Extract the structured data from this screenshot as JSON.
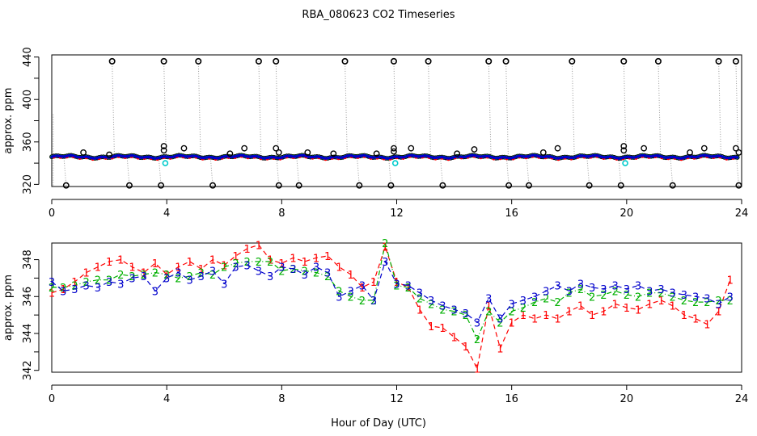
{
  "figure": {
    "title": "RBA_080623  CO2 Timeseries",
    "xlabel": "Hour of Day (UTC)"
  },
  "colors": {
    "axis": "#000000",
    "gray_drop": "#999999",
    "raw": "#000000",
    "series1": "#ff0000",
    "series2": "#00b000",
    "series3": "#0000cc",
    "cyan": "#00cccc"
  },
  "chart_data": [
    {
      "type": "scatter",
      "title": "RBA_080623  CO2 Timeseries",
      "xlabel": "",
      "ylabel": "approx. ppm",
      "xlim": [
        0,
        24
      ],
      "ylim": [
        318,
        442
      ],
      "xticks": [
        0,
        4,
        8,
        12,
        16,
        20,
        24
      ],
      "yticks": [
        320,
        360,
        400,
        440
      ],
      "baseline_ppm": 346,
      "outliers_high": [
        {
          "x": 2.1,
          "y": 436
        },
        {
          "x": 3.9,
          "y": 436
        },
        {
          "x": 5.1,
          "y": 436
        },
        {
          "x": 7.2,
          "y": 436
        },
        {
          "x": 7.8,
          "y": 436
        },
        {
          "x": 10.2,
          "y": 436
        },
        {
          "x": 11.9,
          "y": 436
        },
        {
          "x": 13.1,
          "y": 436
        },
        {
          "x": 15.2,
          "y": 436
        },
        {
          "x": 15.8,
          "y": 436
        },
        {
          "x": 18.1,
          "y": 436
        },
        {
          "x": 19.9,
          "y": 436
        },
        {
          "x": 21.1,
          "y": 436
        },
        {
          "x": 23.2,
          "y": 436
        },
        {
          "x": 23.8,
          "y": 436
        }
      ],
      "outliers_low": [
        {
          "x": 0.5,
          "y": 319
        },
        {
          "x": 2.7,
          "y": 319
        },
        {
          "x": 3.8,
          "y": 319
        },
        {
          "x": 5.6,
          "y": 319
        },
        {
          "x": 7.9,
          "y": 319
        },
        {
          "x": 8.6,
          "y": 319
        },
        {
          "x": 10.7,
          "y": 319
        },
        {
          "x": 11.8,
          "y": 319
        },
        {
          "x": 13.6,
          "y": 319
        },
        {
          "x": 15.9,
          "y": 319
        },
        {
          "x": 16.6,
          "y": 319
        },
        {
          "x": 18.7,
          "y": 319
        },
        {
          "x": 19.8,
          "y": 319
        },
        {
          "x": 21.6,
          "y": 319
        },
        {
          "x": 23.9,
          "y": 319
        }
      ],
      "mid_points": [
        {
          "x": 1.1,
          "y": 350
        },
        {
          "x": 2.0,
          "y": 348
        },
        {
          "x": 3.9,
          "y": 352
        },
        {
          "x": 3.9,
          "y": 356
        },
        {
          "x": 4.6,
          "y": 354
        },
        {
          "x": 6.2,
          "y": 349
        },
        {
          "x": 6.7,
          "y": 354
        },
        {
          "x": 7.8,
          "y": 354
        },
        {
          "x": 7.9,
          "y": 350
        },
        {
          "x": 8.9,
          "y": 350
        },
        {
          "x": 9.8,
          "y": 349
        },
        {
          "x": 11.3,
          "y": 349
        },
        {
          "x": 11.9,
          "y": 354
        },
        {
          "x": 11.9,
          "y": 351
        },
        {
          "x": 12.5,
          "y": 354
        },
        {
          "x": 14.1,
          "y": 349
        },
        {
          "x": 14.7,
          "y": 353
        },
        {
          "x": 17.1,
          "y": 350
        },
        {
          "x": 17.6,
          "y": 354
        },
        {
          "x": 19.9,
          "y": 352
        },
        {
          "x": 19.9,
          "y": 356
        },
        {
          "x": 20.6,
          "y": 354
        },
        {
          "x": 22.2,
          "y": 350
        },
        {
          "x": 22.7,
          "y": 354
        },
        {
          "x": 23.8,
          "y": 354
        },
        {
          "x": 23.9,
          "y": 350
        }
      ],
      "cyan_points": [
        {
          "x": 3.95,
          "y": 340
        },
        {
          "x": 11.95,
          "y": 340
        },
        {
          "x": 19.95,
          "y": 340
        }
      ]
    },
    {
      "type": "line",
      "title": "",
      "xlabel": "Hour of Day (UTC)",
      "ylabel": "approx. ppm",
      "xlim": [
        0,
        24
      ],
      "ylim": [
        341.9,
        348.9
      ],
      "xticks": [
        0,
        4,
        8,
        12,
        16,
        20,
        24
      ],
      "yticks": [
        342,
        344,
        346,
        348
      ],
      "series": [
        {
          "name": "1",
          "style": "dashed",
          "x": [
            0.0,
            0.4,
            0.8,
            1.2,
            1.6,
            2.0,
            2.4,
            2.8,
            3.2,
            3.6,
            4.0,
            4.4,
            4.8,
            5.2,
            5.6,
            6.0,
            6.4,
            6.8,
            7.2,
            7.6,
            8.0,
            8.4,
            8.8,
            9.2,
            9.6,
            10.0,
            10.4,
            10.8,
            11.2,
            11.6,
            12.0,
            12.4,
            12.8,
            13.2,
            13.6,
            14.0,
            14.4,
            14.8,
            15.2,
            15.6,
            16.0,
            16.4,
            16.8,
            17.2,
            17.6,
            18.0,
            18.4,
            18.8,
            19.2,
            19.6,
            20.0,
            20.4,
            20.8,
            21.2,
            21.6,
            22.0,
            22.4,
            22.8,
            23.2,
            23.6
          ],
          "values": [
            346.2,
            346.4,
            346.8,
            347.3,
            347.6,
            347.9,
            348.0,
            347.6,
            347.3,
            347.8,
            347.2,
            347.6,
            347.9,
            347.5,
            348.0,
            347.7,
            348.2,
            348.6,
            348.8,
            348.0,
            347.8,
            348.1,
            347.9,
            348.1,
            348.2,
            347.6,
            347.2,
            346.5,
            346.8,
            348.7,
            346.8,
            346.5,
            345.3,
            344.4,
            344.3,
            343.8,
            343.3,
            342.1,
            345.5,
            343.2,
            344.6,
            345.0,
            344.8,
            345.0,
            344.8,
            345.2,
            345.5,
            345.0,
            345.2,
            345.6,
            345.4,
            345.3,
            345.6,
            345.8,
            345.5,
            345.0,
            344.8,
            344.5,
            345.2,
            346.9
          ]
        },
        {
          "name": "2",
          "style": "dashdot",
          "x": [
            0.0,
            0.4,
            0.8,
            1.2,
            1.6,
            2.0,
            2.4,
            2.8,
            3.2,
            3.6,
            4.0,
            4.4,
            4.8,
            5.2,
            5.6,
            6.0,
            6.4,
            6.8,
            7.2,
            7.6,
            8.0,
            8.4,
            8.8,
            9.2,
            9.6,
            10.0,
            10.4,
            10.8,
            11.2,
            11.6,
            12.0,
            12.4,
            12.8,
            13.2,
            13.6,
            14.0,
            14.4,
            14.8,
            15.2,
            15.6,
            16.0,
            16.4,
            16.8,
            17.2,
            17.6,
            18.0,
            18.4,
            18.8,
            19.2,
            19.6,
            20.0,
            20.4,
            20.8,
            21.2,
            21.6,
            22.0,
            22.4,
            22.8,
            23.2,
            23.6
          ],
          "values": [
            346.5,
            346.5,
            346.6,
            346.8,
            346.9,
            346.9,
            347.2,
            347.1,
            347.2,
            347.3,
            347.2,
            347.0,
            347.1,
            347.3,
            347.2,
            347.6,
            347.8,
            347.9,
            347.9,
            347.9,
            347.4,
            347.5,
            347.4,
            347.3,
            347.1,
            346.3,
            346.0,
            345.8,
            345.8,
            348.9,
            346.6,
            346.5,
            345.9,
            345.6,
            345.3,
            345.2,
            345.0,
            343.7,
            345.2,
            344.6,
            345.2,
            345.4,
            345.7,
            345.9,
            345.7,
            346.2,
            346.4,
            346.0,
            346.1,
            346.3,
            346.1,
            346.0,
            346.2,
            346.2,
            346.0,
            345.8,
            345.7,
            345.7,
            345.8,
            345.8
          ]
        },
        {
          "name": "3",
          "style": "dashed",
          "x": [
            0.0,
            0.4,
            0.8,
            1.2,
            1.6,
            2.0,
            2.4,
            2.8,
            3.2,
            3.6,
            4.0,
            4.4,
            4.8,
            5.2,
            5.6,
            6.0,
            6.4,
            6.8,
            7.2,
            7.6,
            8.0,
            8.4,
            8.8,
            9.2,
            9.6,
            10.0,
            10.4,
            10.8,
            11.2,
            11.6,
            12.0,
            12.4,
            12.8,
            13.2,
            13.6,
            14.0,
            14.4,
            14.8,
            15.2,
            15.6,
            16.0,
            16.4,
            16.8,
            17.2,
            17.6,
            18.0,
            18.4,
            18.8,
            19.2,
            19.6,
            20.0,
            20.4,
            20.8,
            21.2,
            21.6,
            22.0,
            22.4,
            22.8,
            23.2,
            23.6
          ],
          "values": [
            346.8,
            346.3,
            346.4,
            346.6,
            346.5,
            346.8,
            346.7,
            347.0,
            347.1,
            346.3,
            347.0,
            347.3,
            346.9,
            347.1,
            347.4,
            346.7,
            347.6,
            347.7,
            347.4,
            347.1,
            347.6,
            347.5,
            347.2,
            347.6,
            347.3,
            346.0,
            346.3,
            346.6,
            345.8,
            347.9,
            346.7,
            346.6,
            346.2,
            345.8,
            345.5,
            345.3,
            345.1,
            344.6,
            345.9,
            344.8,
            345.6,
            345.8,
            346.0,
            346.3,
            346.6,
            346.3,
            346.7,
            346.5,
            346.4,
            346.6,
            346.4,
            346.6,
            346.3,
            346.4,
            346.2,
            346.1,
            346.0,
            345.9,
            345.6,
            346.0
          ]
        }
      ]
    }
  ]
}
